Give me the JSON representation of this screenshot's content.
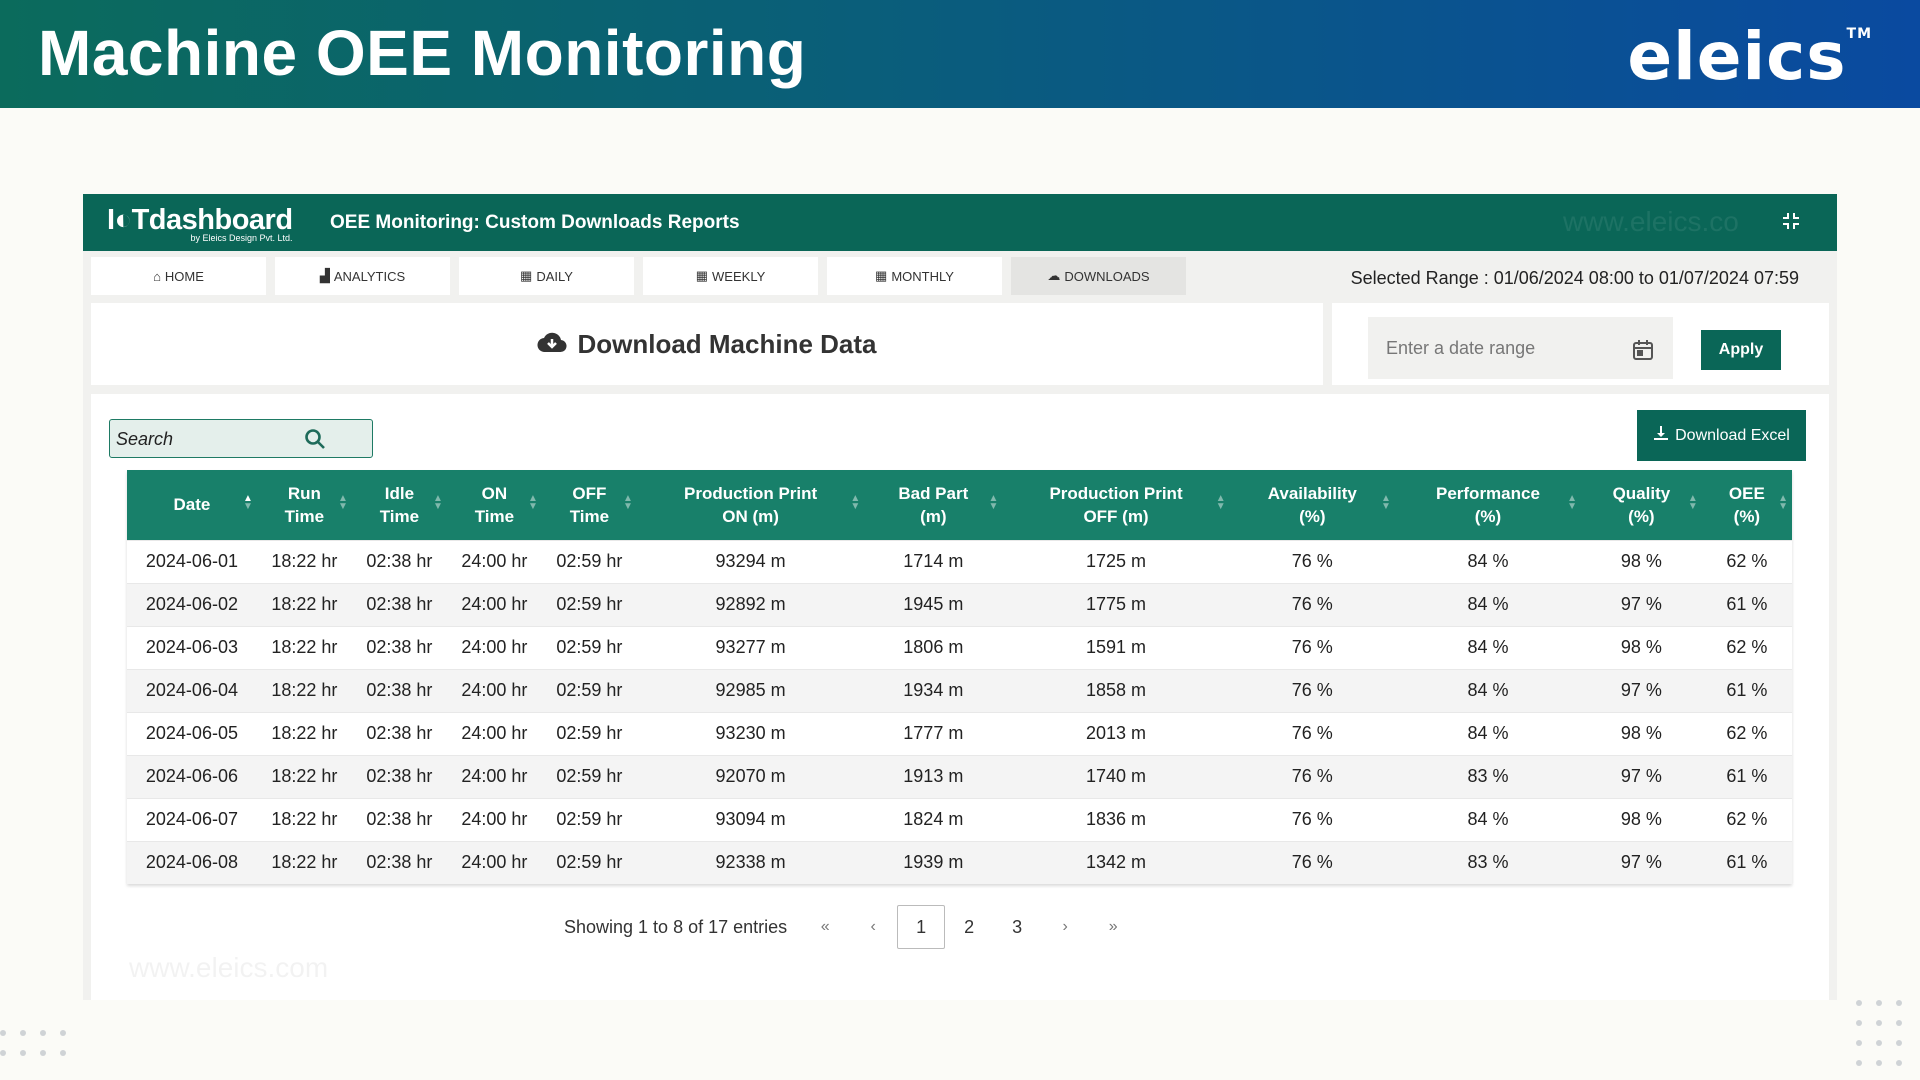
{
  "banner": {
    "title": "Machine OEE Monitoring",
    "brand": "eleics",
    "trademark": "TM"
  },
  "app": {
    "logo_main": "I◐Tdashboard",
    "logo_sub": "by Eleics Design Pvt. Ltd.",
    "title": "OEE Monitoring: Custom Downloads Reports",
    "watermark": "www.eleics.co",
    "collapse_icon": "compress-icon"
  },
  "tabs": [
    {
      "label": "HOME",
      "icon": "⌂"
    },
    {
      "label": "ANALYTICS",
      "icon": "▟"
    },
    {
      "label": "DAILY",
      "icon": "▦"
    },
    {
      "label": "WEEKLY",
      "icon": "▦"
    },
    {
      "label": "MONTHLY",
      "icon": "▦"
    },
    {
      "label": "DOWNLOADS",
      "icon": "☁"
    }
  ],
  "selected_range": "Selected Range : 01/06/2024 08:00 to 01/07/2024 07:59",
  "download": {
    "title": "Download Machine Data"
  },
  "date_picker": {
    "placeholder": "Enter a date range",
    "apply_label": "Apply"
  },
  "search": {
    "placeholder": "Search"
  },
  "excel_label": "Download Excel",
  "table": {
    "headers": [
      [
        "Date",
        ""
      ],
      [
        "Run",
        "Time"
      ],
      [
        "Idle",
        "Time"
      ],
      [
        "ON",
        "Time"
      ],
      [
        "OFF",
        "Time"
      ],
      [
        "Production Print",
        "ON (m)"
      ],
      [
        "Bad Part",
        "(m)"
      ],
      [
        "Production Print",
        "OFF (m)"
      ],
      [
        "Availability",
        "(%)"
      ],
      [
        "Performance",
        "(%)"
      ],
      [
        "Quality",
        "(%)"
      ],
      [
        "OEE",
        "(%)"
      ]
    ],
    "rows": [
      [
        "2024-06-01",
        "18:22 hr",
        "02:38 hr",
        "24:00 hr",
        "02:59 hr",
        "93294 m",
        "1714 m",
        "1725 m",
        "76 %",
        "84 %",
        "98 %",
        "62 %"
      ],
      [
        "2024-06-02",
        "18:22 hr",
        "02:38 hr",
        "24:00 hr",
        "02:59 hr",
        "92892 m",
        "1945 m",
        "1775 m",
        "76 %",
        "84 %",
        "97 %",
        "61 %"
      ],
      [
        "2024-06-03",
        "18:22 hr",
        "02:38 hr",
        "24:00 hr",
        "02:59 hr",
        "93277 m",
        "1806 m",
        "1591 m",
        "76 %",
        "84 %",
        "98 %",
        "62 %"
      ],
      [
        "2024-06-04",
        "18:22 hr",
        "02:38 hr",
        "24:00 hr",
        "02:59 hr",
        "92985 m",
        "1934 m",
        "1858 m",
        "76 %",
        "84 %",
        "97 %",
        "61 %"
      ],
      [
        "2024-06-05",
        "18:22 hr",
        "02:38 hr",
        "24:00 hr",
        "02:59 hr",
        "93230 m",
        "1777 m",
        "2013 m",
        "76 %",
        "84 %",
        "98 %",
        "62 %"
      ],
      [
        "2024-06-06",
        "18:22 hr",
        "02:38 hr",
        "24:00 hr",
        "02:59 hr",
        "92070 m",
        "1913 m",
        "1740 m",
        "76 %",
        "83 %",
        "97 %",
        "61 %"
      ],
      [
        "2024-06-07",
        "18:22 hr",
        "02:38 hr",
        "24:00 hr",
        "02:59 hr",
        "93094 m",
        "1824 m",
        "1836 m",
        "76 %",
        "84 %",
        "98 %",
        "62 %"
      ],
      [
        "2024-06-08",
        "18:22 hr",
        "02:38 hr",
        "24:00 hr",
        "02:59 hr",
        "92338 m",
        "1939 m",
        "1342 m",
        "76 %",
        "83 %",
        "97 %",
        "61 %"
      ]
    ]
  },
  "pagination": {
    "info": "Showing 1 to 8 of 17 entries",
    "first": "«",
    "prev": "‹",
    "next": "›",
    "last": "»",
    "pages": [
      "1",
      "2",
      "3"
    ],
    "current": "1"
  },
  "watermark_bottom": "www.eleics.com",
  "colors": {
    "primary": "#0a6657",
    "header_row": "#18806a"
  }
}
